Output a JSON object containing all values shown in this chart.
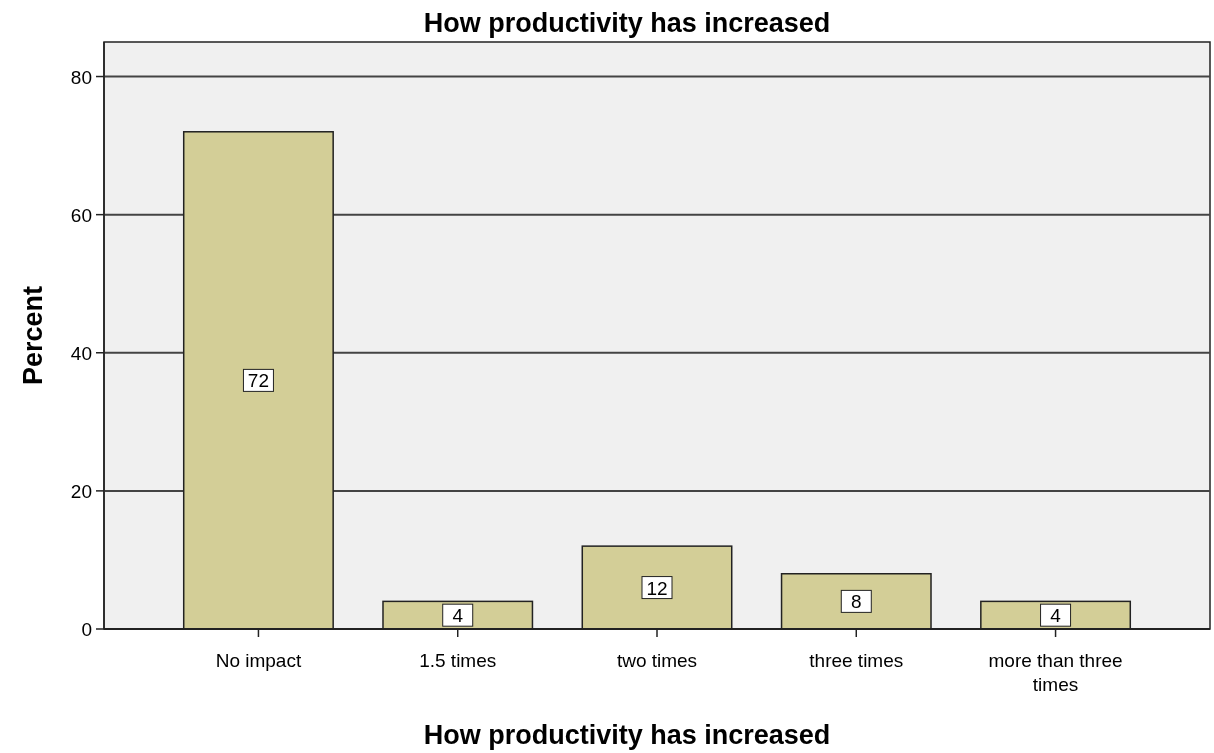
{
  "chart_data": {
    "type": "bar",
    "title": "How productivity has increased",
    "xlabel": "How productivity has increased",
    "ylabel": "Percent",
    "categories": [
      "No impact",
      "1.5 times",
      "two times",
      "three times",
      "more than three times"
    ],
    "values": [
      72,
      4,
      12,
      8,
      4
    ],
    "color": "#d3ce97",
    "ylim": [
      0,
      85
    ],
    "yticks": [
      0,
      20,
      40,
      60,
      80
    ],
    "grid": "y",
    "data_labels": true
  }
}
